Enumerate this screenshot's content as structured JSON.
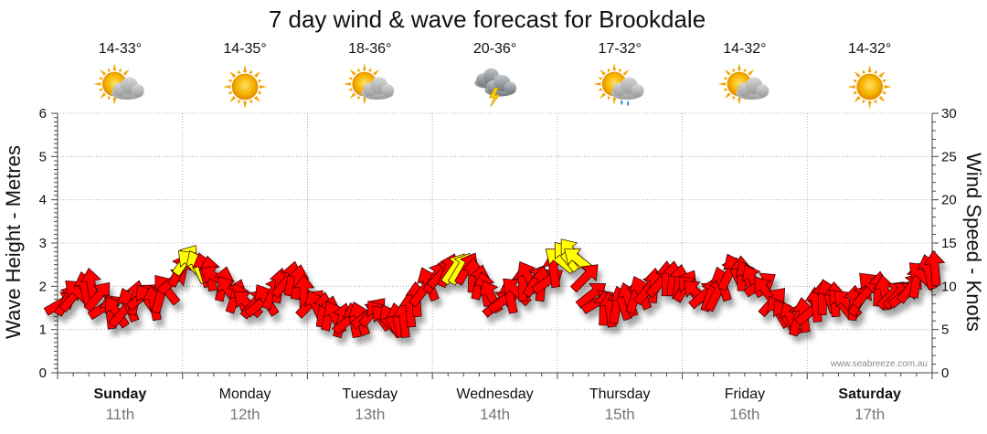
{
  "chart_data": {
    "type": "line",
    "title": "7 day wind & wave forecast for Brookdale",
    "ylabel_left": "Wave Height - Metres",
    "ylabel_right": "Wind Speed - Knots",
    "ylim_left": [
      0,
      6
    ],
    "ylim_right": [
      0,
      30
    ],
    "yticks_left": [
      "0",
      "1",
      "2",
      "3",
      "4",
      "5",
      "6"
    ],
    "yticks_right": [
      "0",
      "5",
      "10",
      "15",
      "20",
      "25",
      "30"
    ],
    "credit": "www.seabreeze.com.au",
    "days": [
      {
        "name": "Sunday",
        "date": "11th",
        "temps": "14-33°",
        "icon": "partly-cloudy-icon",
        "bold": true
      },
      {
        "name": "Monday",
        "date": "12th",
        "temps": "14-35°",
        "icon": "sunny-icon",
        "bold": false
      },
      {
        "name": "Tuesday",
        "date": "13th",
        "temps": "18-36°",
        "icon": "partly-cloudy-icon",
        "bold": false
      },
      {
        "name": "Wednesday",
        "date": "14th",
        "temps": "20-36°",
        "icon": "thunderstorm-icon",
        "bold": false
      },
      {
        "name": "Thursday",
        "date": "15th",
        "temps": "17-32°",
        "icon": "sun-shower-icon",
        "bold": false
      },
      {
        "name": "Friday",
        "date": "16th",
        "temps": "14-32°",
        "icon": "partly-cloudy-icon",
        "bold": false
      },
      {
        "name": "Saturday",
        "date": "17th",
        "temps": "14-32°",
        "icon": "sunny-icon",
        "bold": true
      }
    ],
    "wind_series": {
      "name": "Wind Speed (knots)",
      "x_hours": [
        0,
        6,
        9,
        12,
        15,
        18,
        21,
        24,
        27,
        30,
        33,
        36,
        39,
        42,
        45,
        48,
        51,
        54,
        57,
        60,
        63,
        66,
        69,
        72,
        75,
        78,
        81,
        84,
        87,
        90,
        93,
        96,
        99,
        102,
        105,
        108,
        111,
        114,
        117,
        120,
        123,
        126,
        129,
        132,
        135,
        138,
        141,
        144,
        147,
        150,
        153,
        156,
        159,
        162,
        165,
        168
      ],
      "knots": [
        8,
        10,
        7,
        7,
        9,
        8,
        10,
        13,
        12,
        11,
        9,
        8,
        8,
        10,
        11,
        8,
        7,
        6,
        6,
        7,
        6,
        6,
        9,
        11,
        12,
        12,
        10,
        8,
        9,
        11,
        10,
        13,
        14,
        9,
        7,
        8,
        9,
        10,
        11,
        10,
        9,
        9,
        12,
        11,
        10,
        7,
        6,
        7,
        9,
        8,
        8,
        10,
        9,
        9,
        11,
        12
      ],
      "color_light": "#ff0000",
      "color_strong": "#ffff00",
      "strong_threshold": 12
    }
  }
}
